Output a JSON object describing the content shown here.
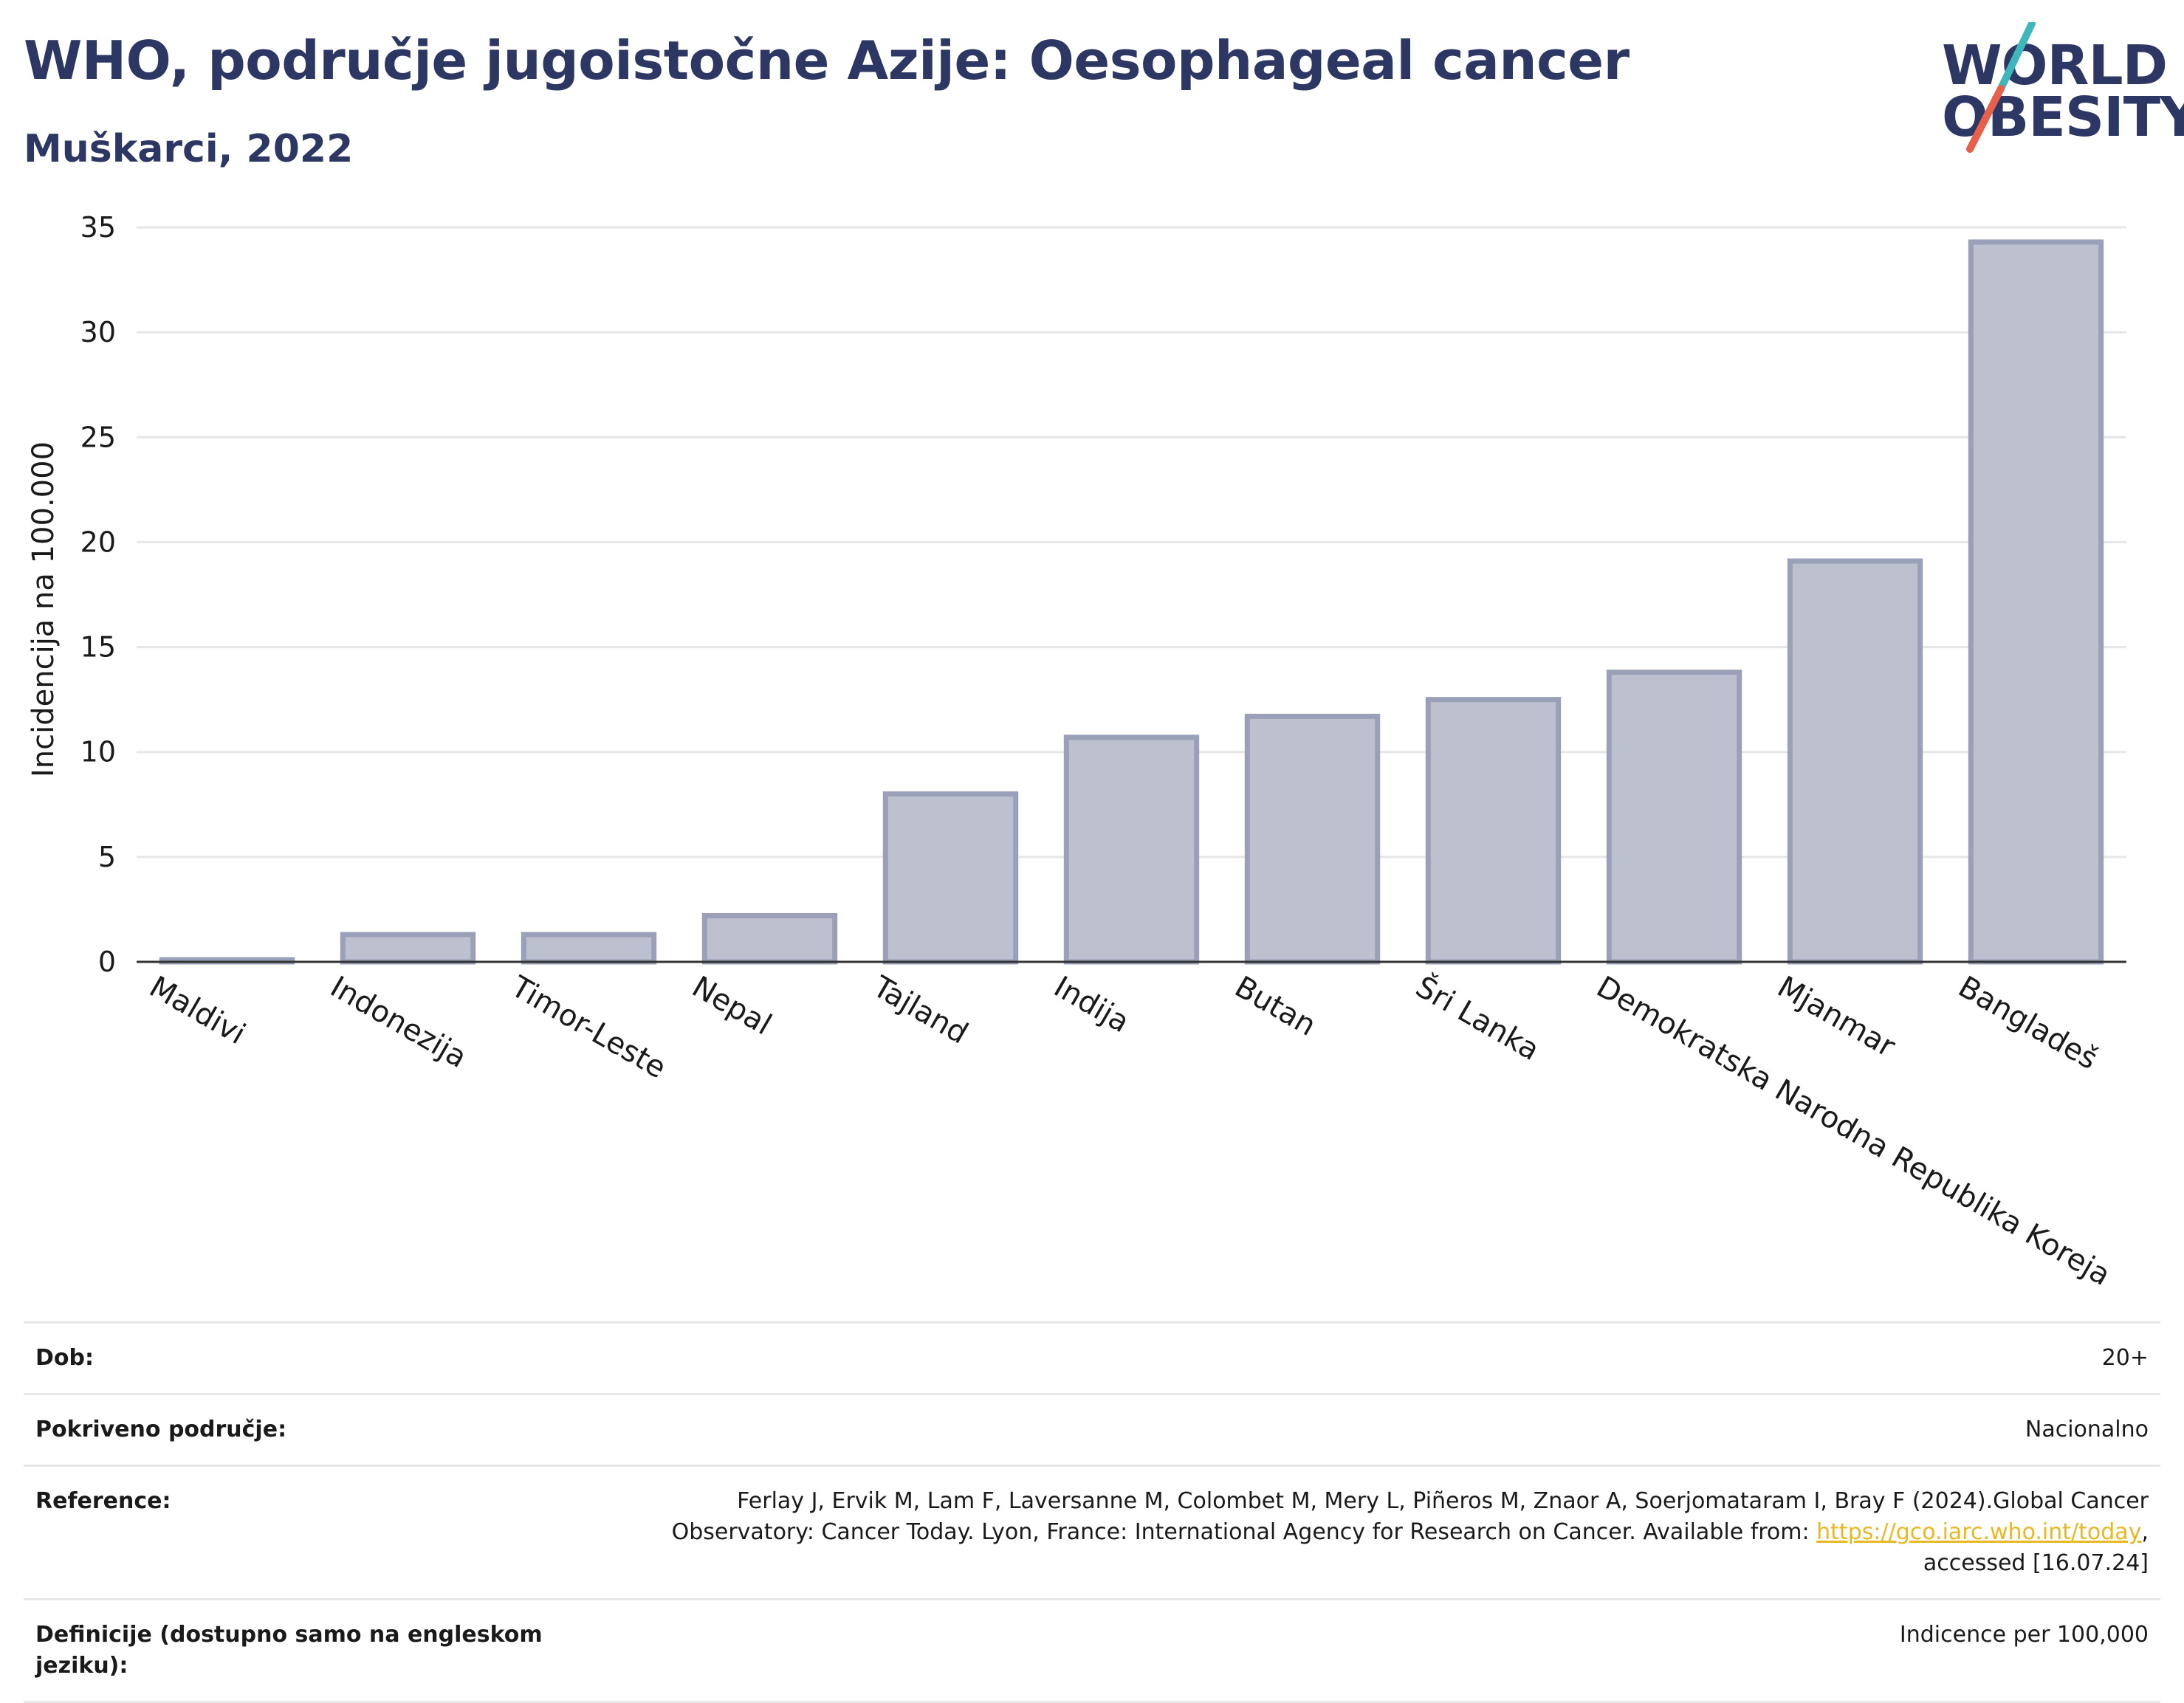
{
  "header": {
    "title": "WHO, područje jugoistočne Azije: Oesophageal cancer",
    "subtitle": "Muškarci, 2022"
  },
  "logo": {
    "line1": "WORLD",
    "line2": "OBESITY",
    "colors": {
      "text": "#2c3763",
      "slash_top": "#3fb6b9",
      "slash_bottom": "#e8604c"
    }
  },
  "chart_data": {
    "type": "bar",
    "categories": [
      "Maldivi",
      "Indonezija",
      "Timor-Leste",
      "Nepal",
      "Tajland",
      "Indija",
      "Butan",
      "Šri Lanka",
      "Demokratska Narodna Republika Koreja",
      "Mjanmar",
      "Bangladeš"
    ],
    "values": [
      0.1,
      1.3,
      1.3,
      2.2,
      8.0,
      10.7,
      11.7,
      12.5,
      13.8,
      19.1,
      34.3
    ],
    "ylabel": "Incidencija na 100.000",
    "ylim": [
      0,
      35
    ],
    "yticks": [
      0,
      5,
      10,
      15,
      20,
      25,
      30,
      35
    ],
    "grid": true,
    "colors": {
      "bar_fill": "#bcc0cf",
      "bar_stroke": "#9aa0b8",
      "axis": "#333333",
      "grid": "#e6e6e6"
    }
  },
  "meta": [
    {
      "label": "Dob:",
      "value": "20+"
    },
    {
      "label": "Pokriveno područje:",
      "value": "Nacionalno"
    },
    {
      "label": "Reference:",
      "value_before": "Ferlay J, Ervik M, Lam F, Laversanne M, Colombet M, Mery L, Piñeros M, Znaor A, Soerjomataram I, Bray F (2024).Global Cancer Observatory: Cancer Today. Lyon, France: International Agency for Research on Cancer. Available from: ",
      "link": "https://gco.iarc.who.int/today",
      "value_after": ", accessed [16.07.24]"
    },
    {
      "label": "Definicije (dostupno samo na engleskom jeziku):",
      "value": "Indicence per 100,000"
    }
  ]
}
